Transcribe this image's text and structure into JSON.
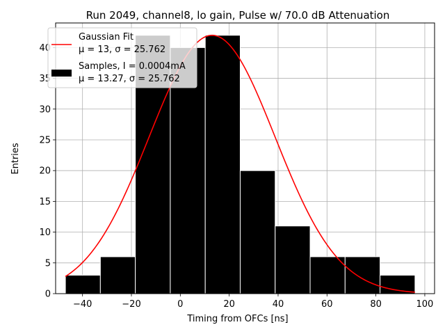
{
  "chart_data": {
    "type": "bar",
    "title": "Run 2049, channel8, lo gain, Pulse w/ 70.0 dB Attenuation",
    "xlabel": "Timing from OFCs [ns]",
    "ylabel": "Entries",
    "xlim": [
      -51,
      104
    ],
    "ylim": [
      0,
      44
    ],
    "xticks": [
      -40,
      -20,
      0,
      20,
      40,
      60,
      80,
      100
    ],
    "yticks": [
      0,
      5,
      10,
      15,
      20,
      25,
      30,
      35,
      40
    ],
    "grid": true,
    "bins": [
      {
        "left": -47,
        "right": -32.7,
        "count": 3
      },
      {
        "left": -32.7,
        "right": -18.4,
        "count": 6
      },
      {
        "left": -18.4,
        "right": -4.1,
        "count": 42
      },
      {
        "left": -4.1,
        "right": 10.2,
        "count": 40
      },
      {
        "left": 10.2,
        "right": 24.5,
        "count": 42
      },
      {
        "left": 24.5,
        "right": 38.8,
        "count": 20
      },
      {
        "left": 38.8,
        "right": 53.1,
        "count": 11
      },
      {
        "left": 53.1,
        "right": 67.4,
        "count": 6
      },
      {
        "left": 67.4,
        "right": 81.7,
        "count": 6
      },
      {
        "left": 81.7,
        "right": 96,
        "count": 3
      }
    ],
    "fit": {
      "mu": 13,
      "sigma": 25.762,
      "amplitude": 42,
      "x_start": -47,
      "x_end": 96
    },
    "bar_color": "#000000",
    "fit_color": "#ff0000",
    "legend": {
      "placement": "top-left",
      "fit_label": "Gaussian Fit",
      "fit_params": "μ = 13, σ = 25.762",
      "samples_label": "Samples, I = 0.0004mA",
      "samples_params": "μ = 13.27, σ = 25.762"
    }
  }
}
